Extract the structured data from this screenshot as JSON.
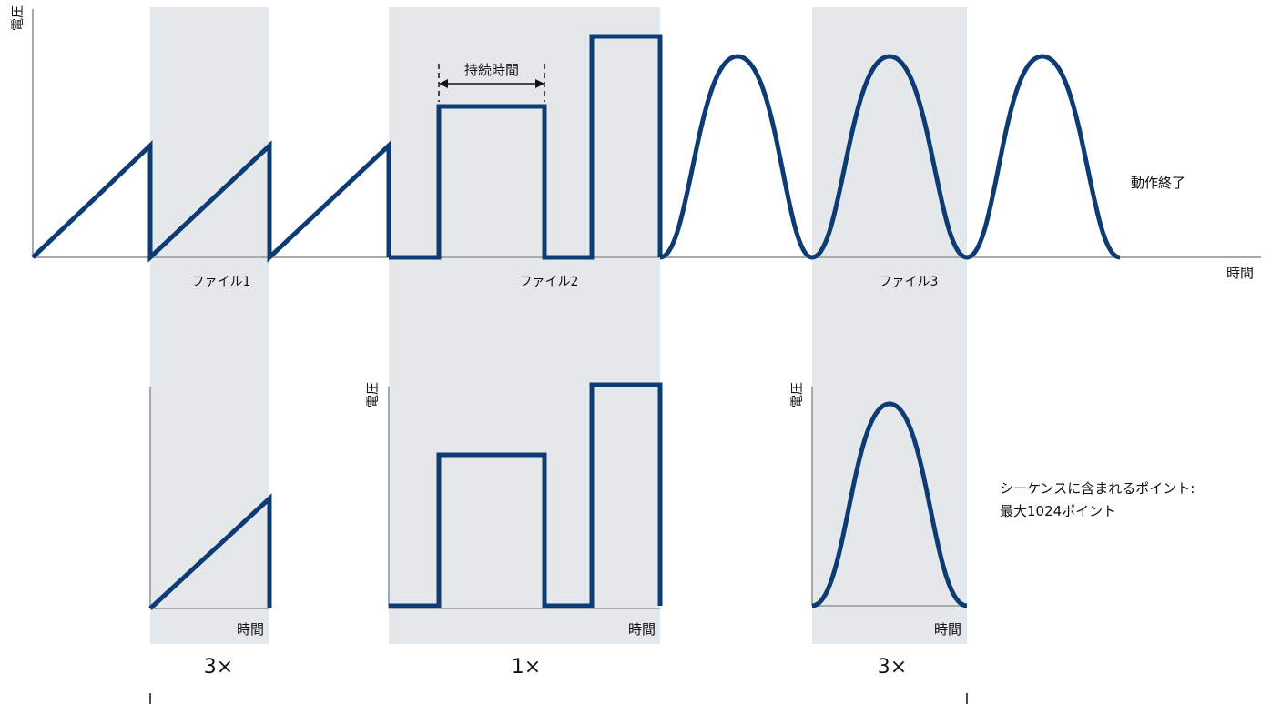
{
  "axes": {
    "voltage": "電圧",
    "time": "時間"
  },
  "files": [
    {
      "label": "ファイル1",
      "repeat": "3×",
      "shape": "ramp"
    },
    {
      "label": "ファイル2",
      "repeat": "1×",
      "shape": "steps"
    },
    {
      "label": "ファイル3",
      "repeat": "3×",
      "shape": "gaussian"
    }
  ],
  "annotations": {
    "duration": "持続時間",
    "end_of_operation": "動作終了",
    "points_line1": "シーケンスに含まれるポイント:",
    "points_line2": "最大1024ポイント"
  },
  "colors": {
    "waveform": "#0d3b73",
    "shading": "#e5e8ea",
    "axis": "#a7aaad"
  }
}
